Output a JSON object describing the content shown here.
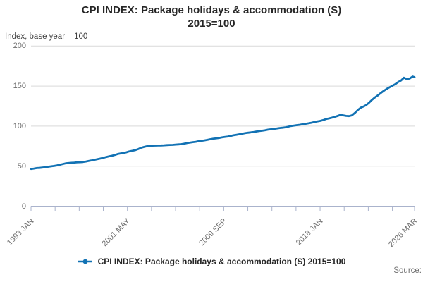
{
  "title": {
    "line1": "CPI INDEX: Package holidays & accommodation (S)",
    "line2": "2015=100"
  },
  "subtitle": "Index, base year = 100",
  "legend": {
    "marker": "line-with-dot",
    "label": "CPI INDEX: Package holidays & accommodation (S) 2015=100"
  },
  "source_label": "Source:",
  "colors": {
    "series": "#1272b4",
    "grid": "#d9d9d9",
    "axis": "#aab3cc",
    "muted_text": "#6e6e6e",
    "title_text": "#262626"
  },
  "chart_data": {
    "type": "line",
    "title": "CPI INDEX: Package holidays & accommodation (S) 2015=100",
    "ylabel": "Index, base year = 100",
    "xlabel": "",
    "ylim": [
      0,
      200
    ],
    "y_ticks": [
      0,
      50,
      100,
      150,
      200
    ],
    "grid": "horizontal",
    "legend_position": "bottom",
    "x_unit": "months since 1993 JAN, monthly series sampled quarterly",
    "x_range_months": [
      0,
      398
    ],
    "x_tick_months": [
      0,
      25,
      50,
      75,
      100,
      125,
      150,
      175,
      200,
      225,
      250,
      275,
      300,
      325,
      350,
      375,
      398
    ],
    "x_axis_labels": [
      {
        "month": 0,
        "label": "1993 JAN"
      },
      {
        "month": 100,
        "label": "2001 MAY"
      },
      {
        "month": 200,
        "label": "2009 SEP"
      },
      {
        "month": 300,
        "label": "2018 JAN"
      },
      {
        "month": 398,
        "label": "2026 MAR"
      }
    ],
    "series": [
      {
        "name": "CPI INDEX: Package holidays & accommodation (S) 2015=100",
        "x_months": [
          0,
          3,
          6,
          9,
          12,
          15,
          18,
          21,
          24,
          27,
          30,
          33,
          36,
          39,
          42,
          45,
          48,
          51,
          54,
          57,
          60,
          63,
          66,
          69,
          72,
          75,
          78,
          81,
          84,
          87,
          90,
          93,
          96,
          99,
          102,
          105,
          108,
          111,
          114,
          117,
          120,
          123,
          126,
          129,
          132,
          135,
          138,
          141,
          144,
          147,
          150,
          153,
          156,
          159,
          162,
          165,
          168,
          171,
          174,
          177,
          180,
          183,
          186,
          189,
          192,
          195,
          198,
          201,
          204,
          207,
          210,
          213,
          216,
          219,
          222,
          225,
          228,
          231,
          234,
          237,
          240,
          243,
          246,
          249,
          252,
          255,
          258,
          261,
          264,
          267,
          270,
          273,
          276,
          279,
          282,
          285,
          288,
          291,
          294,
          297,
          300,
          303,
          306,
          309,
          312,
          315,
          318,
          321,
          324,
          327,
          330,
          333,
          336,
          339,
          342,
          345,
          348,
          351,
          354,
          357,
          360,
          363,
          366,
          369,
          372,
          375,
          378,
          381,
          384,
          387,
          390,
          393,
          396,
          398
        ],
        "values": [
          46.5,
          47.0,
          47.6,
          47.8,
          48.2,
          48.7,
          49.3,
          49.8,
          50.3,
          51.0,
          51.8,
          52.6,
          53.5,
          53.9,
          54.2,
          54.5,
          54.8,
          54.9,
          55.2,
          55.8,
          56.5,
          57.2,
          58.0,
          58.7,
          59.5,
          60.4,
          61.4,
          62.2,
          63.0,
          64.0,
          65.2,
          65.9,
          66.5,
          67.3,
          68.5,
          69.2,
          70.0,
          71.2,
          72.9,
          73.9,
          74.8,
          75.3,
          75.6,
          75.7,
          75.8,
          75.9,
          76.1,
          76.3,
          76.5,
          76.6,
          76.9,
          77.2,
          77.5,
          78.1,
          78.9,
          79.4,
          80.0,
          80.5,
          81.2,
          81.7,
          82.2,
          82.8,
          83.6,
          84.2,
          84.8,
          85.2,
          85.9,
          86.4,
          87.0,
          87.7,
          88.6,
          89.2,
          89.8,
          90.4,
          91.2,
          91.7,
          92.2,
          92.7,
          93.3,
          93.8,
          94.3,
          94.9,
          95.6,
          96.0,
          96.5,
          97.0,
          97.6,
          98.0,
          98.5,
          99.3,
          100.2,
          100.7,
          101.2,
          101.7,
          102.4,
          102.9,
          103.5,
          104.2,
          105.1,
          105.8,
          106.5,
          107.5,
          108.8,
          109.6,
          110.5,
          111.5,
          112.7,
          114.0,
          113.5,
          112.8,
          112.5,
          113.5,
          116.5,
          120.0,
          123.0,
          124.5,
          126.5,
          129.5,
          133.0,
          136.0,
          138.5,
          141.5,
          144.0,
          146.5,
          148.5,
          150.5,
          152.5,
          155.0,
          157.0,
          160.5,
          158.5,
          159.5,
          162.0,
          161.0
        ]
      }
    ]
  }
}
